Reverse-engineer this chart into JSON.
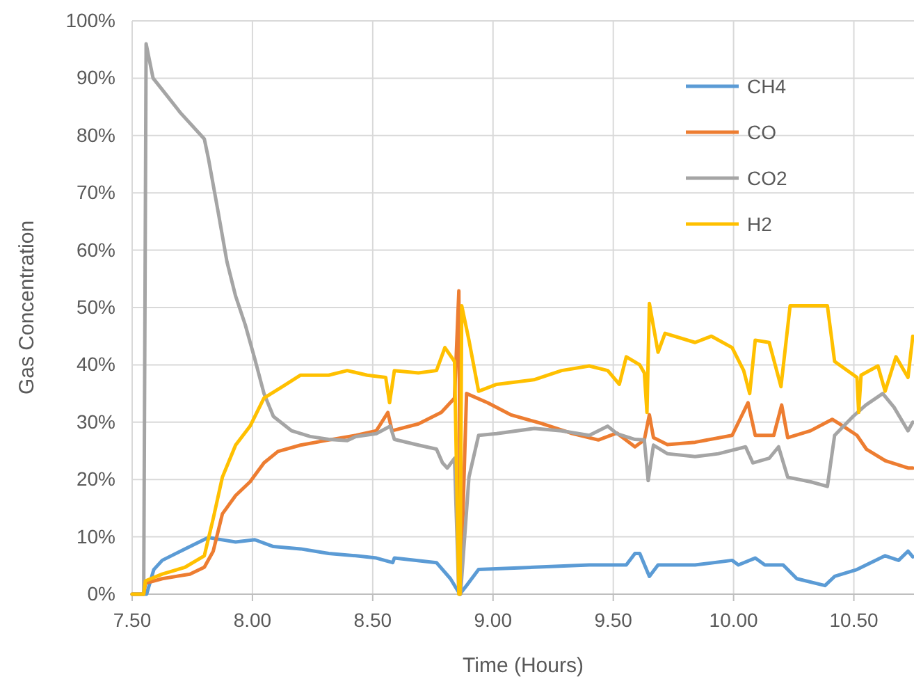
{
  "chart_data": {
    "type": "line",
    "xlabel": "Time (Hours)",
    "ylabel": "Gas Concentration",
    "xlim": [
      7.5,
      10.75
    ],
    "xticks": [
      {
        "value": 7.5,
        "label": "7.50"
      },
      {
        "value": 8,
        "label": "8.00"
      },
      {
        "value": 8.5,
        "label": "8.50"
      },
      {
        "value": 9,
        "label": "9.00"
      },
      {
        "value": 9.5,
        "label": "9.50"
      },
      {
        "value": 10,
        "label": "10.00"
      },
      {
        "value": 10.5,
        "label": "10.50"
      }
    ],
    "ylim": [
      0,
      100
    ],
    "yticks": [
      {
        "value": 0,
        "label": "0%"
      },
      {
        "value": 10,
        "label": "10%"
      },
      {
        "value": 20,
        "label": "20%"
      },
      {
        "value": 30,
        "label": "30%"
      },
      {
        "value": 40,
        "label": "40%"
      },
      {
        "value": 50,
        "label": "50%"
      },
      {
        "value": 60,
        "label": "60%"
      },
      {
        "value": 70,
        "label": "70%"
      },
      {
        "value": 80,
        "label": "80%"
      },
      {
        "value": 90,
        "label": "90%"
      },
      {
        "value": 100,
        "label": "100%"
      }
    ],
    "grid": true,
    "legend": "top right",
    "marker": "none",
    "line_style": "solid",
    "series": [
      {
        "name": "CH4",
        "color": "#5b9bd5",
        "x": [
          7.5,
          7.56,
          7.59,
          7.625,
          7.72,
          7.817,
          7.856,
          7.93,
          8.01,
          8.087,
          8.2,
          8.317,
          8.43,
          8.515,
          8.583,
          8.59,
          8.765,
          8.823,
          8.862,
          8.89,
          8.94,
          9.17,
          9.4,
          9.554,
          9.59,
          9.61,
          9.65,
          9.686,
          9.84,
          9.994,
          10.02,
          10.09,
          10.13,
          10.206,
          10.263,
          10.38,
          10.42,
          10.513,
          10.63,
          10.686,
          10.725,
          10.745
        ],
        "values": [
          0,
          0,
          4.3,
          5.9,
          7.9,
          9.9,
          9.6,
          9.1,
          9.5,
          8.3,
          7.9,
          7.1,
          6.7,
          6.3,
          5.5,
          6.3,
          5.5,
          2.7,
          0,
          1.5,
          4.3,
          4.7,
          5.1,
          5.1,
          7.1,
          7.1,
          3.1,
          5.1,
          5.1,
          5.9,
          5.1,
          6.3,
          5.1,
          5.1,
          2.7,
          1.5,
          3.1,
          4.3,
          6.7,
          5.9,
          7.5,
          6.5
        ]
      },
      {
        "name": "CO",
        "color": "#ed7d31",
        "x": [
          7.5,
          7.548,
          7.555,
          7.625,
          7.74,
          7.8,
          7.837,
          7.875,
          7.93,
          7.99,
          8.048,
          8.106,
          8.2,
          8.317,
          8.43,
          8.515,
          8.563,
          8.58,
          8.69,
          8.785,
          8.84,
          8.858,
          8.865,
          8.89,
          8.977,
          9.073,
          9.208,
          9.323,
          9.438,
          9.515,
          9.59,
          9.629,
          9.65,
          9.667,
          9.725,
          9.84,
          9.994,
          10.06,
          10.09,
          10.167,
          10.2,
          10.225,
          10.32,
          10.41,
          10.456,
          10.513,
          10.552,
          10.63,
          10.725,
          10.745
        ],
        "values": [
          0,
          0,
          1.9,
          2.7,
          3.5,
          4.7,
          7.5,
          14,
          17.2,
          19.6,
          22.9,
          24.9,
          26,
          26.9,
          27.7,
          28.5,
          31.7,
          28.5,
          29.7,
          31.7,
          34.2,
          52.9,
          0,
          35,
          33.4,
          31.3,
          29.7,
          28.1,
          26.9,
          28.1,
          25.7,
          26.9,
          31.3,
          27.3,
          26.1,
          26.5,
          27.7,
          33.4,
          27.7,
          27.7,
          33,
          27.3,
          28.5,
          30.5,
          29.3,
          27.7,
          25.3,
          23.3,
          22,
          22
        ]
      },
      {
        "name": "CO2",
        "color": "#a5a5a5",
        "x": [
          7.5,
          7.548,
          7.558,
          7.587,
          7.625,
          7.7,
          7.8,
          7.817,
          7.856,
          7.894,
          7.93,
          7.97,
          8.01,
          8.048,
          8.087,
          8.163,
          8.24,
          8.317,
          8.394,
          8.43,
          8.515,
          8.573,
          8.59,
          8.69,
          8.765,
          8.79,
          8.81,
          8.84,
          8.858,
          8.865,
          8.9,
          8.94,
          9.015,
          9.17,
          9.285,
          9.4,
          9.477,
          9.515,
          9.59,
          9.629,
          9.645,
          9.667,
          9.725,
          9.84,
          9.937,
          10.05,
          10.08,
          10.148,
          10.187,
          10.225,
          10.32,
          10.39,
          10.42,
          10.494,
          10.55,
          10.62,
          10.667,
          10.725,
          10.745
        ],
        "values": [
          0,
          0,
          96,
          90,
          88,
          84,
          79.4,
          76,
          67,
          58,
          52,
          47,
          41,
          35,
          31,
          28.5,
          27.5,
          27,
          26.8,
          27.5,
          28,
          29.3,
          27,
          26,
          25.3,
          22.9,
          22,
          23.7,
          0,
          0,
          20.4,
          27.7,
          28,
          28.9,
          28.5,
          27.7,
          29.3,
          28,
          27,
          26.9,
          19.8,
          26,
          24.5,
          24,
          24.5,
          25.7,
          22.9,
          23.7,
          25.7,
          20.4,
          19.6,
          18.8,
          27.7,
          30.9,
          33,
          35,
          32.6,
          28.5,
          30
        ]
      },
      {
        "name": "H2",
        "color": "#ffc000",
        "x": [
          7.5,
          7.548,
          7.555,
          7.625,
          7.72,
          7.8,
          7.837,
          7.875,
          7.93,
          7.99,
          8.048,
          8.125,
          8.2,
          8.317,
          8.394,
          8.477,
          8.554,
          8.57,
          8.59,
          8.69,
          8.765,
          8.8,
          8.84,
          8.858,
          8.863,
          8.87,
          8.9,
          8.94,
          9.015,
          9.17,
          9.285,
          9.4,
          9.477,
          9.525,
          9.554,
          9.61,
          9.629,
          9.64,
          9.65,
          9.686,
          9.715,
          9.84,
          9.908,
          9.994,
          10.042,
          10.067,
          10.09,
          10.148,
          10.197,
          10.235,
          10.39,
          10.42,
          10.513,
          10.52,
          10.53,
          10.6,
          10.63,
          10.675,
          10.725,
          10.745
        ],
        "values": [
          0,
          0,
          2.3,
          3.5,
          4.7,
          6.7,
          13.2,
          20.4,
          26,
          29.3,
          34.2,
          36.2,
          38.2,
          38.2,
          39,
          38.2,
          37.8,
          33.4,
          39,
          38.6,
          39,
          43,
          40.6,
          0,
          0,
          50.3,
          44.3,
          35.4,
          36.6,
          37.4,
          39,
          39.8,
          39,
          36.6,
          41.4,
          40,
          38.6,
          31.7,
          50.7,
          42.2,
          45.5,
          43.9,
          45,
          43,
          39,
          35,
          44.3,
          43.9,
          36.2,
          50.3,
          50.3,
          40.6,
          37.8,
          31.7,
          38.2,
          39.8,
          35.4,
          41.4,
          37.8,
          45
        ]
      }
    ]
  }
}
